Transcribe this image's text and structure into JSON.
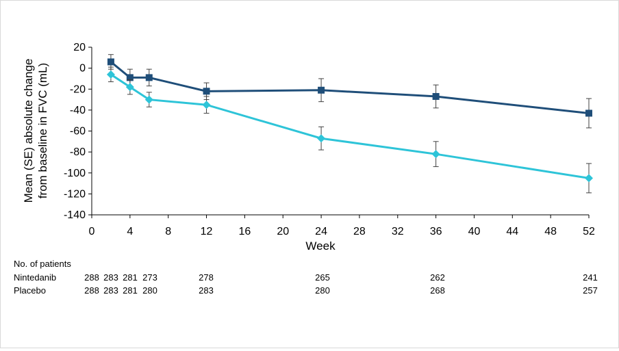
{
  "chart_data": {
    "type": "line",
    "title": "",
    "xlabel": "Week",
    "ylabel_line1": "Mean (SE) absolute change",
    "ylabel_line2": "from baseline in FVC (mL)",
    "xlim": [
      0,
      52
    ],
    "ylim": [
      -140,
      20
    ],
    "xticks": [
      0,
      4,
      8,
      12,
      16,
      20,
      24,
      28,
      32,
      36,
      40,
      44,
      48,
      52
    ],
    "yticks": [
      20,
      0,
      -20,
      -40,
      -60,
      -80,
      -100,
      -120,
      -140
    ],
    "grid": false,
    "legend": "none",
    "series": [
      {
        "color": "#1f4e79",
        "marker": "square",
        "x": [
          2,
          4,
          6,
          12,
          24,
          36,
          52
        ],
        "y": [
          6,
          -9,
          -9,
          -22,
          -21,
          -27,
          -43
        ],
        "err": [
          7,
          8,
          8,
          8,
          11,
          11,
          14
        ]
      },
      {
        "color": "#2ec4d8",
        "marker": "diamond",
        "x": [
          2,
          4,
          6,
          12,
          24,
          36,
          52
        ],
        "y": [
          -6,
          -18,
          -30,
          -35,
          -67,
          -82,
          -105
        ],
        "err": [
          7,
          7,
          7,
          8,
          11,
          12,
          14
        ]
      }
    ]
  },
  "patients_table": {
    "heading": "No. of patients",
    "rows": [
      {
        "label": "Nintedanib",
        "counts": [
          "288",
          "283",
          "281",
          "273",
          "278",
          "265",
          "262",
          "241"
        ]
      },
      {
        "label": "Placebo",
        "counts": [
          "288",
          "283",
          "281",
          "280",
          "283",
          "280",
          "268",
          "257"
        ]
      }
    ]
  }
}
